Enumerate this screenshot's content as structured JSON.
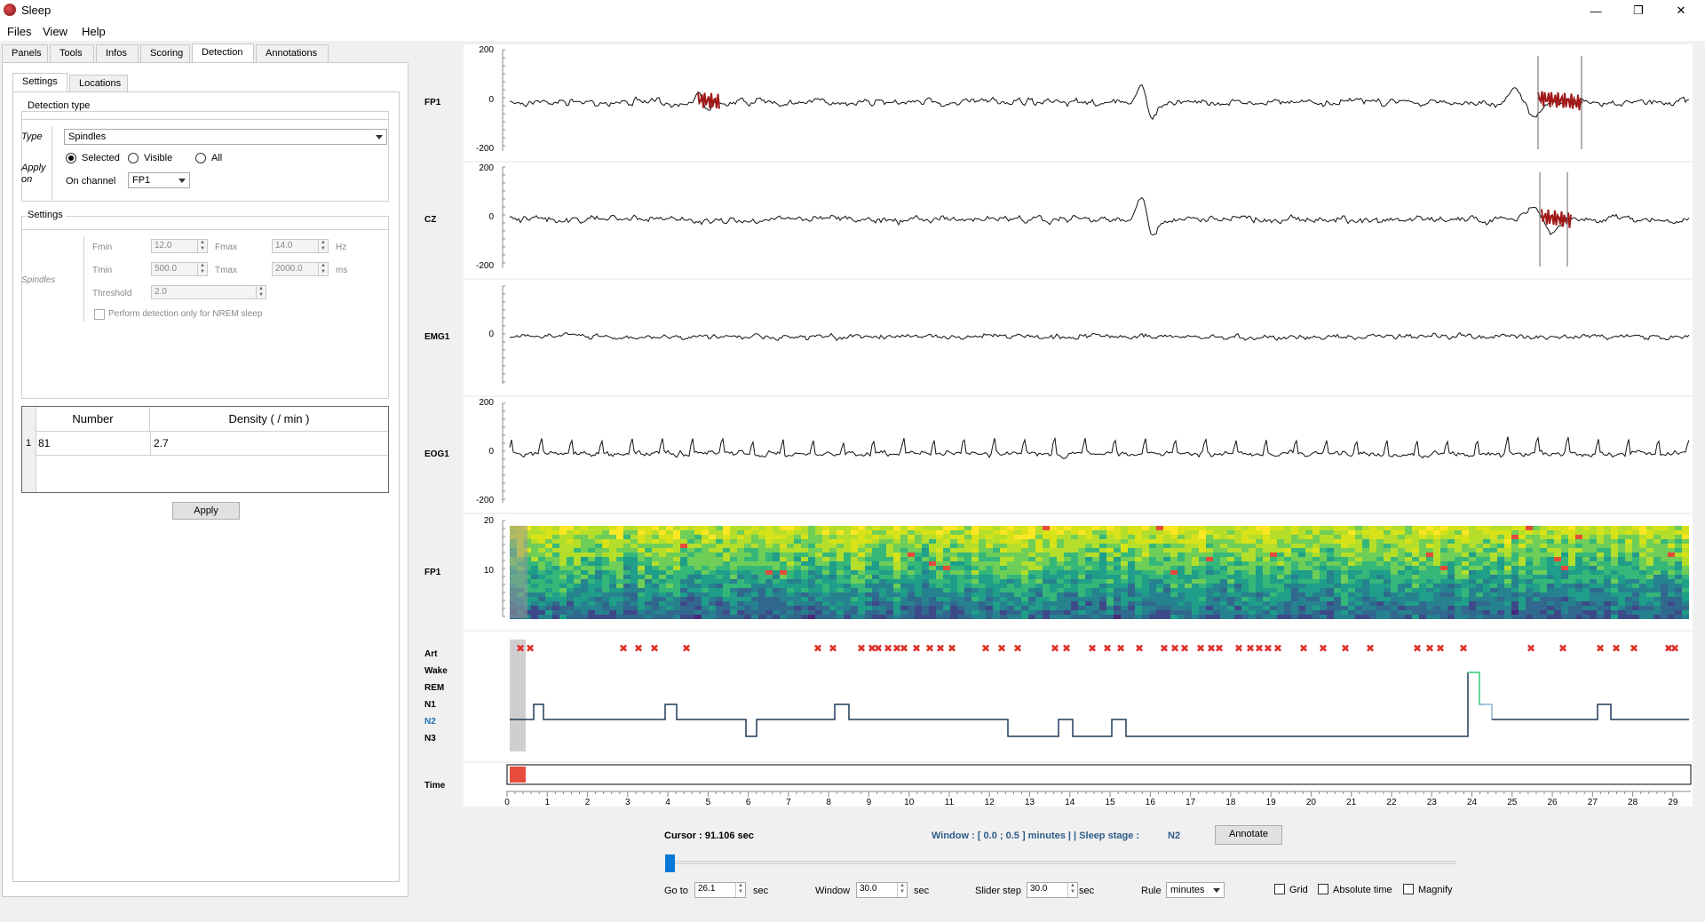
{
  "app": {
    "title": "Sleep"
  },
  "menu": [
    "Files",
    "View",
    "Help"
  ],
  "panel_tabs": [
    "Panels",
    "Tools",
    "Infos",
    "Scoring",
    "Detection",
    "Annotations"
  ],
  "active_panel_tab": "Detection",
  "sub_tabs": [
    "Settings",
    "Locations"
  ],
  "detection": {
    "group_title": "Detection type",
    "type_label": "Type",
    "type_value": "Spindles",
    "apply_label_1": "Apply",
    "apply_label_2": "on",
    "radio_selected": "Selected",
    "radio_visible": "Visible",
    "radio_all": "All",
    "on_channel_label": "On channel",
    "on_channel_value": "FP1"
  },
  "settings": {
    "group_title": "Settings",
    "side_label": "Spindles",
    "fmin_label": "Fmin",
    "fmin_value": "12.0",
    "fmax_label": "Fmax",
    "fmax_value": "14.0",
    "freq_unit": "Hz",
    "tmin_label": "Tmin",
    "tmin_value": "500.0",
    "tmax_label": "Tmax",
    "tmax_value": "2000.0",
    "time_unit": "ms",
    "threshold_label": "Threshold",
    "threshold_value": "2.0",
    "nrem_label": "Perform detection only for NREM sleep"
  },
  "results": {
    "headers": [
      "Number",
      "Density ( / min )"
    ],
    "row_index": "1",
    "number": "81",
    "density": "2.7"
  },
  "apply_button": "Apply",
  "channels": [
    {
      "name": "FP1",
      "ticks": [
        "200",
        "0",
        "-200"
      ]
    },
    {
      "name": "CZ",
      "ticks": [
        "200",
        "0",
        "-200"
      ]
    },
    {
      "name": "EMG1",
      "ticks": [
        "0"
      ]
    },
    {
      "name": "EOG1",
      "ticks": [
        "200",
        "0",
        "-200"
      ]
    }
  ],
  "spectrogram": {
    "name": "FP1",
    "ticks": [
      "20",
      "10"
    ]
  },
  "hypnogram": {
    "stages": [
      "Art",
      "Wake",
      "REM",
      "N1",
      "N2",
      "N3"
    ],
    "highlight_stage": "N2",
    "hypno_color": "#1f3b5a",
    "highlight_color": "#1f6fb5",
    "wake_segment_color": "#2ecc71"
  },
  "time_label": "Time",
  "x_ticks": [
    "0",
    "1",
    "2",
    "3",
    "4",
    "5",
    "6",
    "7",
    "8",
    "9",
    "10",
    "11",
    "12",
    "13",
    "14",
    "15",
    "16",
    "17",
    "18",
    "19",
    "20",
    "21",
    "22",
    "23",
    "24",
    "25",
    "26",
    "27",
    "28",
    "29"
  ],
  "status": {
    "cursor": "Cursor : 91.106 sec",
    "window_info": "Window : [ 0.0 ; 0.5 ] minutes  | |  Sleep stage :",
    "stage": "N2",
    "annotate": "Annotate"
  },
  "controls": {
    "goto_label": "Go to",
    "goto_value": "26.1",
    "goto_unit": "sec",
    "window_label": "Window",
    "window_value": "30.0",
    "window_unit": "sec",
    "slider_step_label": "Slider step",
    "slider_step_value": "30.0",
    "slider_unit": "sec",
    "rule_label": "Rule",
    "rule_value": "minutes",
    "grid_label": "Grid",
    "abs_time_label": "Absolute time",
    "magnify_label": "Magnify"
  },
  "colors": {
    "detection_mark": "#a01818",
    "accent": "#0078d7",
    "time_indicator": "#e74c3c",
    "window_info": "#2e5c8a"
  }
}
